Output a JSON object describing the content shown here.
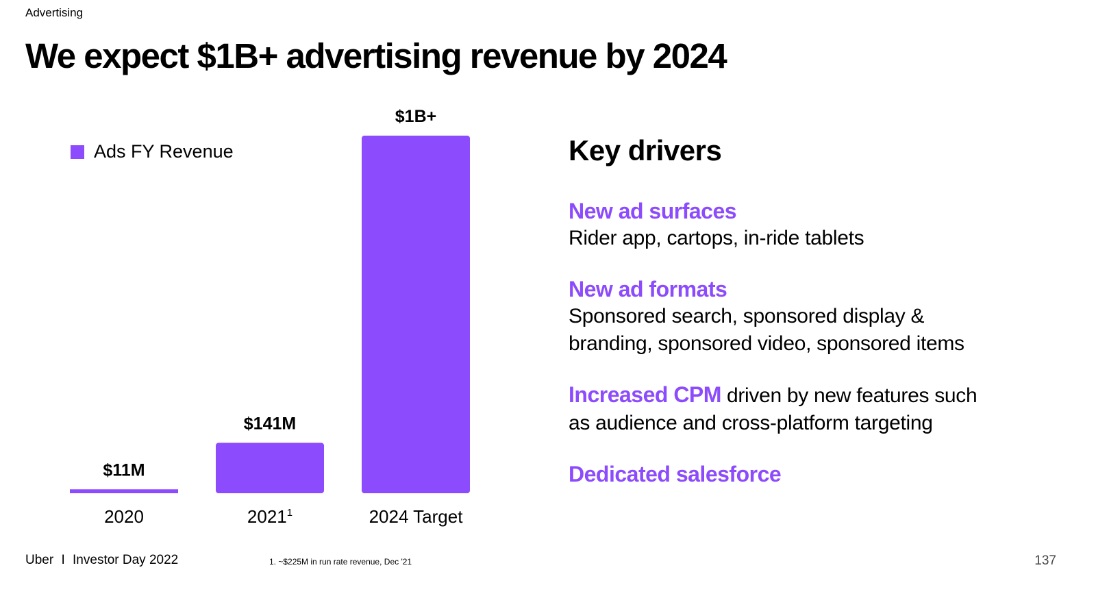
{
  "section_label": "Advertising",
  "title": "We expect $1B+ advertising revenue by 2024",
  "accent_color": "#8c4bfc",
  "chart_data": {
    "type": "bar",
    "categories": [
      "2020",
      "2021",
      "2024 Target"
    ],
    "category_superscripts": [
      "",
      "1",
      ""
    ],
    "series": [
      {
        "name": "Ads FY Revenue",
        "values": [
          11,
          141,
          1000
        ],
        "unit": "$M"
      }
    ],
    "data_labels": [
      "$11M",
      "$141M",
      "$1B+"
    ],
    "legend": "top-left",
    "grid": false,
    "ylim": [
      0,
      1000
    ]
  },
  "key_drivers": {
    "title": "Key drivers",
    "items": [
      {
        "head": "New ad surfaces",
        "body": "Rider app, cartops, in-ride tablets"
      },
      {
        "head": "New ad formats",
        "body_lines": [
          "Sponsored search, sponsored display &",
          "branding, sponsored video, sponsored items"
        ]
      },
      {
        "head": "Increased CPM",
        "body_inline": " driven by new features such",
        "body_line2": "as audience and cross-platform targeting"
      },
      {
        "head": "Dedicated salesforce"
      }
    ]
  },
  "footer": {
    "brand": "Uber",
    "separator": "I",
    "event": "Investor Day 2022",
    "footnote": "1. ~$225M in run rate revenue, Dec '21",
    "page_number": "137"
  }
}
